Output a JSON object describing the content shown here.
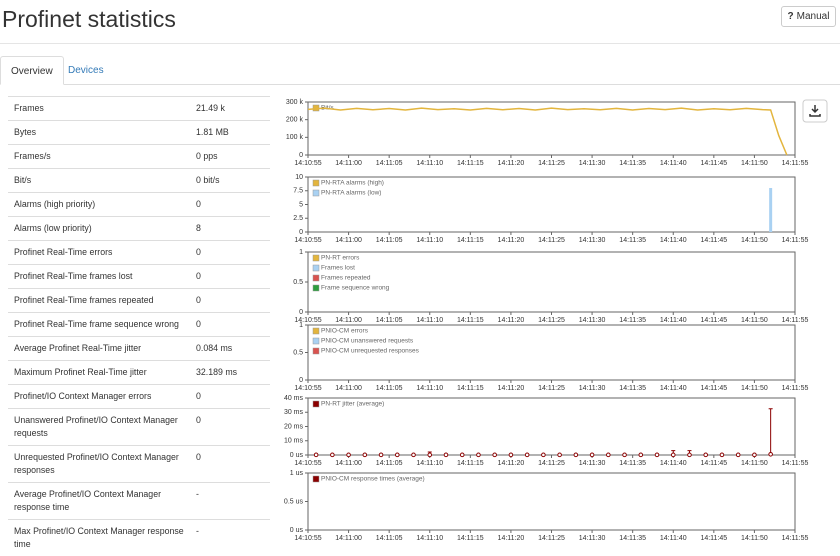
{
  "header": {
    "title": "Profinet statistics",
    "manual_icon": "?",
    "manual": "Manual"
  },
  "tabs": [
    "Overview",
    "Devices"
  ],
  "table": {
    "rows": [
      [
        "Frames",
        "21.49 k"
      ],
      [
        "Bytes",
        "1.81 MB"
      ],
      [
        "Frames/s",
        "0 pps"
      ],
      [
        "Bit/s",
        "0 bit/s"
      ],
      [
        "Alarms (high priority)",
        "0"
      ],
      [
        "Alarms (low priority)",
        "8"
      ],
      [
        "Profinet Real-Time errors",
        "0"
      ],
      [
        "Profinet Real-Time frames lost",
        "0"
      ],
      [
        "Profinet Real-Time frames repeated",
        "0"
      ],
      [
        "Profinet Real-Time frame sequence wrong",
        "0"
      ],
      [
        "Average Profinet Real-Time jitter",
        "0.084 ms"
      ],
      [
        "Maximum Profinet Real-Time jitter",
        "32.189 ms"
      ],
      [
        "Profinet/IO Context Manager errors",
        "0"
      ],
      [
        "Unanswered Profinet/IO Context Manager requests",
        "0"
      ],
      [
        "Unrequested Profinet/IO Context Manager responses",
        "0"
      ],
      [
        "Average Profinet/IO Context Manager response time",
        "-"
      ],
      [
        "Max Profinet/IO Context Manager response time",
        "-"
      ]
    ]
  },
  "chart_data": [
    {
      "type": "line",
      "xlim": [
        "14:10:55",
        "14:11:55"
      ],
      "xticks": [
        "14:10:55",
        "14:11:00",
        "14:11:05",
        "14:11:10",
        "14:11:15",
        "14:11:20",
        "14:11:25",
        "14:11:30",
        "14:11:35",
        "14:11:40",
        "14:11:45",
        "14:11:50",
        "14:11:55"
      ],
      "ylim": [
        0,
        300000
      ],
      "yticks": [
        0,
        {
          "value": 100000,
          "label": "100 k"
        },
        {
          "value": 200000,
          "label": "200 k"
        },
        {
          "value": 300000,
          "label": "300 k"
        }
      ],
      "x": [
        "14:10:55",
        "14:10:57",
        "14:10:59",
        "14:11:01",
        "14:11:03",
        "14:11:05",
        "14:11:07",
        "14:11:09",
        "14:11:11",
        "14:11:13",
        "14:11:15",
        "14:11:17",
        "14:11:19",
        "14:11:21",
        "14:11:23",
        "14:11:25",
        "14:11:27",
        "14:11:29",
        "14:11:31",
        "14:11:33",
        "14:11:35",
        "14:11:37",
        "14:11:39",
        "14:11:41",
        "14:11:43",
        "14:11:45",
        "14:11:47",
        "14:11:49",
        "14:11:51",
        "14:11:52",
        "14:11:53",
        "14:11:54"
      ],
      "series": [
        {
          "name": "Bit/s",
          "color": "#e3b53d",
          "values": [
            258000,
            265000,
            255000,
            264000,
            256000,
            263000,
            255000,
            265000,
            257000,
            262000,
            255000,
            264000,
            256000,
            263000,
            255000,
            265000,
            257000,
            262000,
            256000,
            264000,
            255000,
            263000,
            257000,
            265000,
            255000,
            262000,
            256000,
            264000,
            257000,
            255000,
            110000,
            0
          ]
        }
      ]
    },
    {
      "type": "bar",
      "xlim": [
        "14:10:55",
        "14:11:55"
      ],
      "xticks": [
        "14:10:55",
        "14:11:00",
        "14:11:05",
        "14:11:10",
        "14:11:15",
        "14:11:20",
        "14:11:25",
        "14:11:30",
        "14:11:35",
        "14:11:40",
        "14:11:45",
        "14:11:50",
        "14:11:55"
      ],
      "ylim": [
        0,
        10
      ],
      "yticks": [
        0,
        2.5,
        5,
        7.5,
        10
      ],
      "x": [
        "14:11:52"
      ],
      "series": [
        {
          "name": "PN-RTA alarms (high)",
          "color": "#e3b53d",
          "values": [
            null
          ]
        },
        {
          "name": "PN-RTA alarms (low)",
          "color": "#a9d1f2",
          "values": [
            8
          ]
        }
      ]
    },
    {
      "type": "line",
      "xlim": [
        "14:10:55",
        "14:11:55"
      ],
      "xticks": [
        "14:10:55",
        "14:11:00",
        "14:11:05",
        "14:11:10",
        "14:11:15",
        "14:11:20",
        "14:11:25",
        "14:11:30",
        "14:11:35",
        "14:11:40",
        "14:11:45",
        "14:11:50",
        "14:11:55"
      ],
      "ylim": [
        0,
        1
      ],
      "yticks": [
        0,
        0.5,
        1
      ],
      "x": [],
      "series": [
        {
          "name": "PN-RT errors",
          "color": "#e3b53d",
          "values": []
        },
        {
          "name": "Frames lost",
          "color": "#a9d1f2",
          "values": []
        },
        {
          "name": "Frames repeated",
          "color": "#d9534f",
          "values": []
        },
        {
          "name": "Frame sequence wrong",
          "color": "#2e9e3e",
          "values": []
        }
      ]
    },
    {
      "type": "line",
      "xlim": [
        "14:10:55",
        "14:11:55"
      ],
      "xticks": [
        "14:10:55",
        "14:11:00",
        "14:11:05",
        "14:11:10",
        "14:11:15",
        "14:11:20",
        "14:11:25",
        "14:11:30",
        "14:11:35",
        "14:11:40",
        "14:11:45",
        "14:11:50",
        "14:11:55"
      ],
      "ylim": [
        0,
        1
      ],
      "yticks": [
        0,
        0.5,
        1
      ],
      "x": [],
      "series": [
        {
          "name": "PNIO-CM errors",
          "color": "#e3b53d",
          "values": []
        },
        {
          "name": "PNIO-CM unanswered requests",
          "color": "#a9d1f2",
          "values": []
        },
        {
          "name": "PNIO-CM unrequested responses",
          "color": "#d9534f",
          "values": []
        }
      ]
    },
    {
      "type": "scatter",
      "xlim": [
        "14:10:55",
        "14:11:55"
      ],
      "xticks": [
        "14:10:55",
        "14:11:00",
        "14:11:05",
        "14:11:10",
        "14:11:15",
        "14:11:20",
        "14:11:25",
        "14:11:30",
        "14:11:35",
        "14:11:40",
        "14:11:45",
        "14:11:50",
        "14:11:55"
      ],
      "ylim": [
        0,
        40
      ],
      "yticks": [
        {
          "value": 0,
          "label": "0 us"
        },
        {
          "value": 10,
          "label": "10 ms"
        },
        {
          "value": 20,
          "label": "20 ms"
        },
        {
          "value": 30,
          "label": "30 ms"
        },
        {
          "value": 40,
          "label": "40 ms"
        }
      ],
      "x": [
        "14:10:56",
        "14:10:58",
        "14:11:00",
        "14:11:02",
        "14:11:04",
        "14:11:06",
        "14:11:08",
        "14:11:10",
        "14:11:12",
        "14:11:14",
        "14:11:16",
        "14:11:18",
        "14:11:20",
        "14:11:22",
        "14:11:24",
        "14:11:26",
        "14:11:28",
        "14:11:30",
        "14:11:32",
        "14:11:34",
        "14:11:36",
        "14:11:38",
        "14:11:40",
        "14:11:42",
        "14:11:44",
        "14:11:46",
        "14:11:48",
        "14:11:50",
        "14:11:52"
      ],
      "series": [
        {
          "name": "PN-RT jitter (average)",
          "color": "#8b0000",
          "values": [
            0.1,
            0.1,
            0.1,
            0.1,
            0.1,
            0.1,
            0.1,
            0.1,
            0.1,
            0.1,
            0.1,
            0.1,
            0.1,
            0.1,
            0.1,
            0.1,
            0.1,
            0.1,
            0.1,
            0.1,
            0.1,
            0.1,
            0.1,
            0.1,
            0.1,
            0.1,
            0.1,
            0.1,
            0.5
          ],
          "errors": [
            null,
            null,
            null,
            null,
            null,
            null,
            null,
            2,
            null,
            null,
            null,
            null,
            null,
            null,
            null,
            null,
            null,
            null,
            null,
            null,
            null,
            null,
            3,
            3,
            null,
            null,
            null,
            null,
            32
          ]
        }
      ]
    },
    {
      "type": "line",
      "xlim": [
        "14:10:55",
        "14:11:55"
      ],
      "xticks": [
        "14:10:55",
        "14:11:00",
        "14:11:05",
        "14:11:10",
        "14:11:15",
        "14:11:20",
        "14:11:25",
        "14:11:30",
        "14:11:35",
        "14:11:40",
        "14:11:45",
        "14:11:50",
        "14:11:55"
      ],
      "ylim": [
        0,
        1
      ],
      "yticks": [
        {
          "value": 0,
          "label": "0 us"
        },
        {
          "value": 0.5,
          "label": "0.5 us"
        },
        {
          "value": 1,
          "label": "1 us"
        }
      ],
      "x": [],
      "series": [
        {
          "name": "PNIO-CM response times (average)",
          "color": "#8b0000",
          "values": []
        }
      ]
    }
  ]
}
